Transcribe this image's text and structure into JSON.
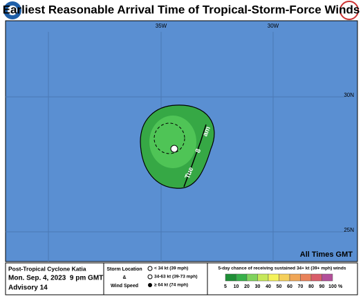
{
  "header": {
    "title": "Earliest Reasonable Arrival Time of Tropical-Storm-Force Winds"
  },
  "map": {
    "lon_labels": [
      "35W",
      "30W"
    ],
    "lat_labels": [
      "30N",
      "25N"
    ],
    "time_label": [
      "Tue",
      "8",
      "am"
    ],
    "note": "All Times GMT"
  },
  "footer": {
    "storm": "Post-Tropical Cyclone Katia",
    "date": "Mon. Sep. 4, 2023  9 pm GMT",
    "advisory": "Advisory 14",
    "storm_location": "Storm Location",
    "amp": "&",
    "wind_speed": "Wind Speed",
    "legend": [
      "< 34 kt (39 mph)",
      "34-63 kt (39-73 mph)",
      "≥ 64 kt (74 mph)"
    ],
    "scale_title": "5-day chance of receiving sustained 34+ kt (39+ mph) winds",
    "scale": [
      5,
      10,
      20,
      30,
      40,
      50,
      60,
      70,
      80,
      90,
      100
    ],
    "scale_unit": "%"
  }
}
